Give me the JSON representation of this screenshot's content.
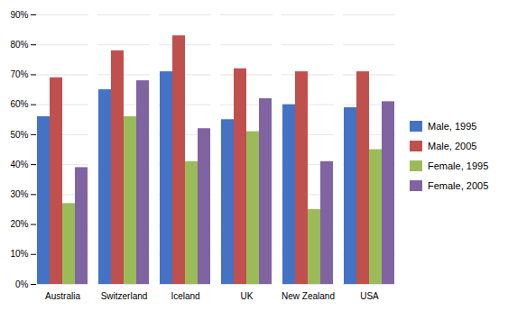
{
  "chart_data": {
    "type": "bar",
    "categories": [
      "Australia",
      "Switzerland",
      "Iceland",
      "UK",
      "New Zealand",
      "USA"
    ],
    "series": [
      {
        "name": "Male, 1995",
        "color": "#4472C4",
        "values": [
          56,
          65,
          71,
          55,
          60,
          59
        ]
      },
      {
        "name": "Male, 2005",
        "color": "#C0504D",
        "values": [
          69,
          78,
          83,
          72,
          71,
          71
        ]
      },
      {
        "name": "Female, 1995",
        "color": "#9BBB59",
        "values": [
          27,
          56,
          41,
          51,
          25,
          45
        ]
      },
      {
        "name": "Female, 2005",
        "color": "#8064A2",
        "values": [
          39,
          68,
          52,
          62,
          41,
          61
        ]
      }
    ],
    "ylim": [
      0,
      90
    ],
    "yticks": [
      {
        "value": 0,
        "label": "0%"
      },
      {
        "value": 10,
        "label": "10%"
      },
      {
        "value": 20,
        "label": "20%"
      },
      {
        "value": 30,
        "label": "30%"
      },
      {
        "value": 40,
        "label": "40%"
      },
      {
        "value": 50,
        "label": "50%"
      },
      {
        "value": 60,
        "label": "60%"
      },
      {
        "value": 70,
        "label": "70%"
      },
      {
        "value": 80,
        "label": "80%"
      },
      {
        "value": 90,
        "label": "90%"
      }
    ],
    "grid": true,
    "legend": "right"
  }
}
